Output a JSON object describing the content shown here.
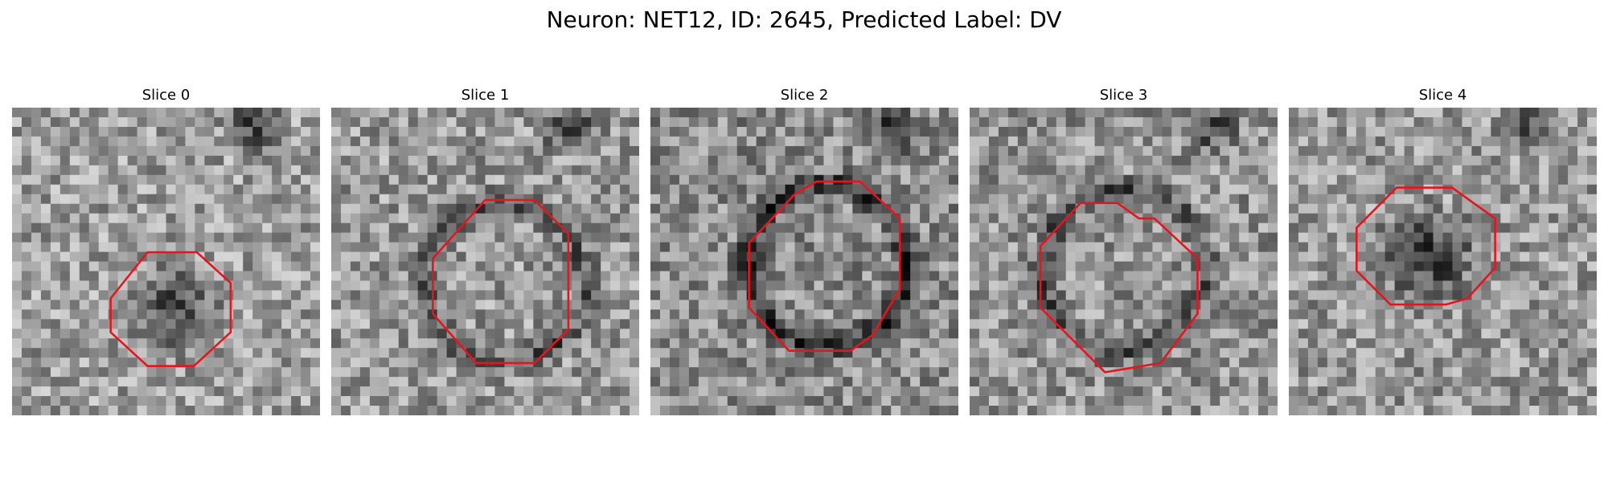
{
  "figure": {
    "title": "Neuron: NET12, ID: 2645, Predicted Label: DV"
  },
  "contour_color": "#e8141b",
  "panels": [
    {
      "title": "Slice 0",
      "seed": 11,
      "base": [
        0.62,
        0.55
      ],
      "ring": 0.0,
      "dark_center": 0.35,
      "outline": [
        [
          0.32,
          0.62
        ],
        [
          0.44,
          0.47
        ],
        [
          0.6,
          0.47
        ],
        [
          0.71,
          0.57
        ],
        [
          0.71,
          0.73
        ],
        [
          0.59,
          0.84
        ],
        [
          0.44,
          0.84
        ],
        [
          0.32,
          0.73
        ]
      ]
    },
    {
      "title": "Slice 1",
      "seed": 23,
      "base": [
        0.6,
        0.55
      ],
      "ring": 0.28,
      "dark_center": 0.0,
      "outline": [
        [
          0.33,
          0.49
        ],
        [
          0.5,
          0.3
        ],
        [
          0.66,
          0.3
        ],
        [
          0.77,
          0.41
        ],
        [
          0.77,
          0.72
        ],
        [
          0.66,
          0.83
        ],
        [
          0.47,
          0.83
        ],
        [
          0.33,
          0.67
        ]
      ]
    },
    {
      "title": "Slice 2",
      "seed": 37,
      "base": [
        0.55,
        0.55
      ],
      "ring": 0.4,
      "dark_center": 0.0,
      "outline": [
        [
          0.32,
          0.44
        ],
        [
          0.47,
          0.28
        ],
        [
          0.54,
          0.24
        ],
        [
          0.68,
          0.24
        ],
        [
          0.81,
          0.36
        ],
        [
          0.81,
          0.59
        ],
        [
          0.72,
          0.74
        ],
        [
          0.65,
          0.79
        ],
        [
          0.45,
          0.79
        ],
        [
          0.32,
          0.65
        ]
      ]
    },
    {
      "title": "Slice 3",
      "seed": 49,
      "base": [
        0.58,
        0.55
      ],
      "ring": 0.3,
      "dark_center": 0.0,
      "outline": [
        [
          0.23,
          0.45
        ],
        [
          0.36,
          0.31
        ],
        [
          0.48,
          0.31
        ],
        [
          0.55,
          0.36
        ],
        [
          0.6,
          0.36
        ],
        [
          0.74,
          0.49
        ],
        [
          0.74,
          0.67
        ],
        [
          0.62,
          0.83
        ],
        [
          0.44,
          0.86
        ],
        [
          0.23,
          0.65
        ]
      ]
    },
    {
      "title": "Slice 4",
      "seed": 61,
      "base": [
        0.6,
        0.55
      ],
      "ring": 0.0,
      "dark_center": 0.42,
      "outline": [
        [
          0.22,
          0.39
        ],
        [
          0.35,
          0.26
        ],
        [
          0.53,
          0.26
        ],
        [
          0.67,
          0.36
        ],
        [
          0.67,
          0.52
        ],
        [
          0.58,
          0.62
        ],
        [
          0.51,
          0.64
        ],
        [
          0.43,
          0.64
        ],
        [
          0.33,
          0.64
        ],
        [
          0.22,
          0.53
        ]
      ]
    }
  ]
}
